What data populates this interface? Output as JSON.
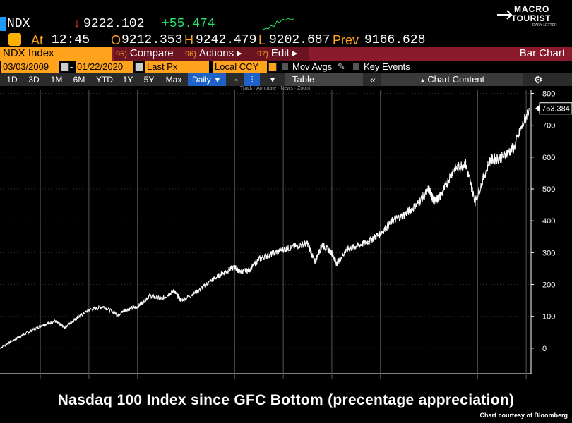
{
  "header": {
    "ticker": "NDX",
    "arrow": "↓",
    "last": "9222.102",
    "change": "+55.474",
    "at_label": "At",
    "time": "12:45",
    "open_label": "O",
    "open": "9212.353",
    "high_label": "H",
    "high": "9242.479",
    "low_label": "L",
    "low": "9202.687",
    "prev_label": "Prev",
    "prev": "9166.628"
  },
  "logo": {
    "line1": "MACRO",
    "line2": "TOURIST",
    "line3": "DAILY LETTER"
  },
  "toolbar": {
    "security": "NDX Index",
    "compare_num": "95)",
    "compare": "Compare",
    "actions_num": "96)",
    "actions": "Actions ▸",
    "edit_num": "97)",
    "edit": "Edit ▸",
    "view": "Bar Chart"
  },
  "settings": {
    "start_date": "03/03/2009",
    "dash": "-",
    "end_date": "01/22/2020",
    "price_field": "Last Px",
    "currency": "Local CCY",
    "mov_avgs": "Mov Avgs",
    "key_events": "Key Events"
  },
  "ranges": [
    "1D",
    "3D",
    "1M",
    "6M",
    "YTD",
    "1Y",
    "5Y",
    "Max"
  ],
  "frequency": "Daily ▼",
  "table_label": "Table",
  "chart_content_label": "Chart Content",
  "tools": {
    "track": "Track",
    "annotate": "Annotate",
    "news": "News",
    "zoom": "Zoom"
  },
  "colors": {
    "accent": "#ffa21c",
    "toolbar_red": "#8b1a2c",
    "up": "#27e46a",
    "down": "#ff3b3b"
  },
  "chart_data": {
    "type": "line",
    "x": [
      2009.17,
      2009.5,
      2009.75,
      2010.0,
      2010.3,
      2010.5,
      2010.75,
      2011.0,
      2011.3,
      2011.6,
      2011.75,
      2012.0,
      2012.25,
      2012.5,
      2012.75,
      2012.9,
      2013.25,
      2013.5,
      2013.75,
      2014.0,
      2014.1,
      2014.3,
      2014.5,
      2014.75,
      2015.0,
      2015.25,
      2015.5,
      2015.65,
      2015.8,
      2016.0,
      2016.1,
      2016.3,
      2016.5,
      2016.75,
      2017.0,
      2017.25,
      2017.5,
      2017.75,
      2018.0,
      2018.1,
      2018.25,
      2018.5,
      2018.75,
      2018.95,
      2019.25,
      2019.5,
      2019.75,
      2020.06
    ],
    "values": [
      0,
      30,
      50,
      70,
      85,
      65,
      95,
      120,
      130,
      105,
      120,
      130,
      165,
      155,
      180,
      150,
      180,
      210,
      235,
      255,
      240,
      245,
      280,
      295,
      310,
      320,
      330,
      270,
      325,
      300,
      265,
      310,
      320,
      335,
      360,
      400,
      420,
      450,
      500,
      460,
      480,
      560,
      580,
      460,
      590,
      600,
      630,
      753
    ],
    "yticks": [
      0,
      100,
      200,
      300,
      400,
      500,
      600,
      700,
      800
    ],
    "xticks": [
      "2009",
      "2010",
      "2011",
      "2012",
      "2013",
      "2014",
      "2015",
      "2016",
      "2017",
      "2018",
      "2019"
    ],
    "ylim": [
      -80,
      810
    ],
    "xlim": [
      2009.17,
      2020.1
    ],
    "last_label": "753.384",
    "title": "Nasdaq 100 Index since GFC Bottom (precentage appreciation)",
    "source": "Chart courtesy of Bloomberg",
    "grid": true
  }
}
